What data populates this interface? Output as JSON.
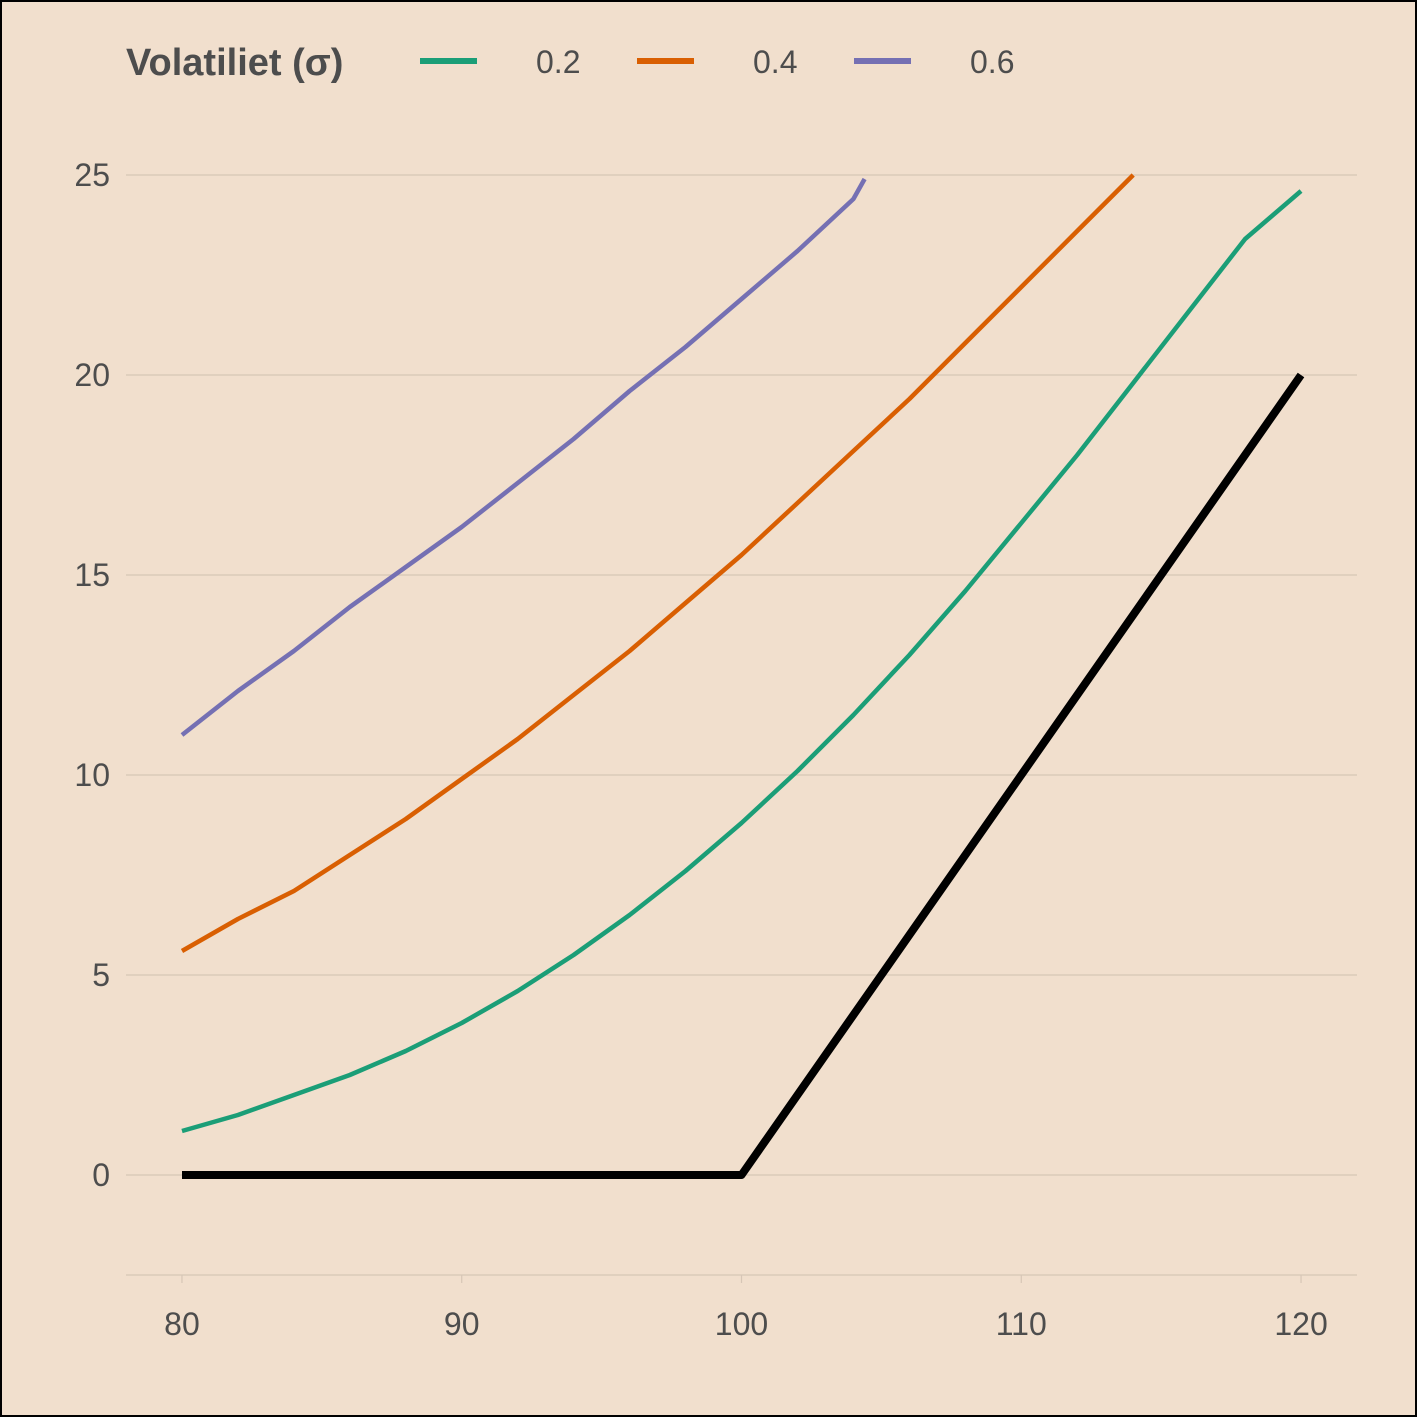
{
  "chart_data": {
    "type": "line",
    "legend": {
      "title": "Volatiliet (σ)",
      "placement": "top-left"
    },
    "x": [
      80,
      82,
      84,
      86,
      88,
      90,
      92,
      94,
      96,
      98,
      100,
      102,
      104,
      104.4,
      106,
      108,
      110,
      112,
      114,
      116,
      118,
      120
    ],
    "xlim": [
      78,
      122
    ],
    "ylim": [
      -2.5,
      26
    ],
    "x_ticks": [
      "80",
      "90",
      "100",
      "110",
      "120"
    ],
    "y_ticks": [
      "0",
      "5",
      "10",
      "15",
      "20",
      "25"
    ],
    "grid": "horizontal",
    "series": [
      {
        "name": "0.2",
        "color": "#1b9e77",
        "x": [
          80,
          82,
          84,
          86,
          88,
          90,
          92,
          94,
          96,
          98,
          100,
          102,
          104,
          106,
          108,
          110,
          112,
          114,
          116,
          118,
          120
        ],
        "values": [
          1.1,
          1.5,
          2.0,
          2.5,
          3.1,
          3.8,
          4.6,
          5.5,
          6.5,
          7.6,
          8.8,
          10.1,
          11.5,
          13.0,
          14.6,
          16.3,
          18.0,
          19.8,
          21.6,
          23.4,
          24.6
        ]
      },
      {
        "name": "0.4",
        "color": "#d95f02",
        "x": [
          80,
          82,
          84,
          86,
          88,
          90,
          92,
          94,
          96,
          98,
          100,
          102,
          104,
          106,
          108,
          110,
          112,
          114
        ],
        "values": [
          5.6,
          6.4,
          7.1,
          8.0,
          8.9,
          9.9,
          10.9,
          12.0,
          13.1,
          14.3,
          15.5,
          16.8,
          18.1,
          19.4,
          20.8,
          22.2,
          23.6,
          25.0
        ]
      },
      {
        "name": "0.6",
        "color": "#7570b3",
        "x": [
          80,
          82,
          84,
          86,
          88,
          90,
          92,
          94,
          96,
          98,
          100,
          102,
          104,
          104.4
        ],
        "values": [
          11.0,
          12.1,
          13.1,
          14.2,
          15.2,
          16.2,
          17.3,
          18.4,
          19.6,
          20.7,
          21.9,
          23.1,
          24.4,
          24.9
        ]
      },
      {
        "color": "#000000",
        "x": [
          80,
          100,
          120
        ],
        "values": [
          0,
          0,
          20
        ]
      }
    ]
  }
}
